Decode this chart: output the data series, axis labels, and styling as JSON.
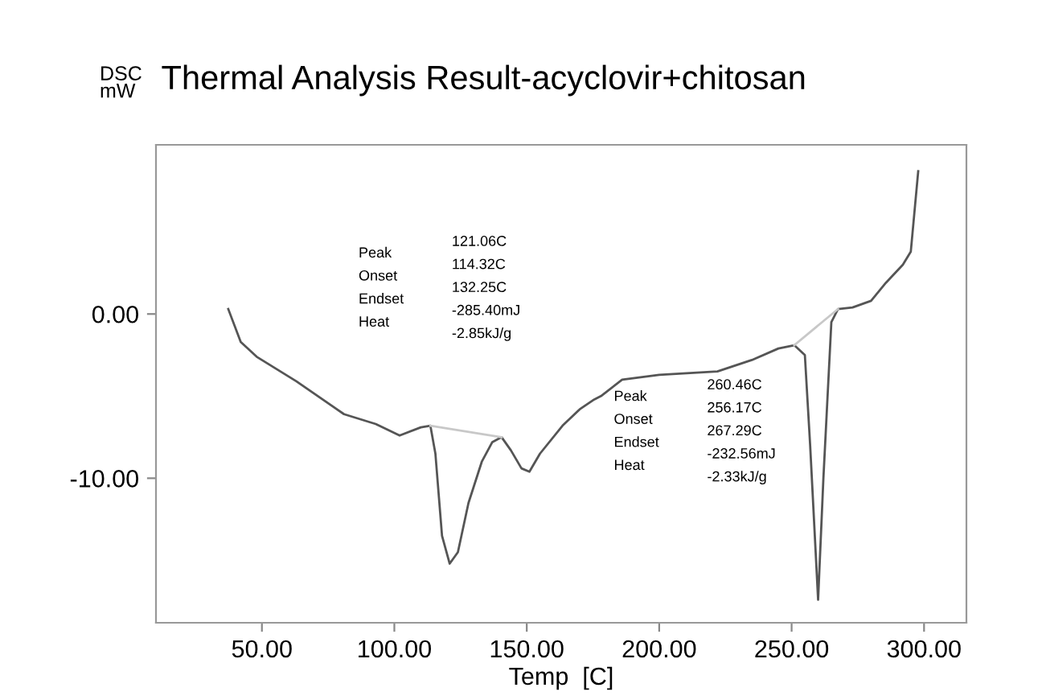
{
  "chart_data": {
    "type": "line",
    "title": "Thermal Analysis Result-acyclovir+chitosan",
    "xlabel": "Temp  [C]",
    "ylabel": "DSC\nmW",
    "xlim": [
      10,
      316
    ],
    "ylim": [
      -18.8,
      10.3
    ],
    "xticks": [
      {
        "value": 50,
        "label": "50.00"
      },
      {
        "value": 100,
        "label": "100.00"
      },
      {
        "value": 150,
        "label": "150.00"
      },
      {
        "value": 200,
        "label": "200.00"
      },
      {
        "value": 250,
        "label": "250.00"
      },
      {
        "value": 300,
        "label": "300.00"
      }
    ],
    "yticks": [
      {
        "value": 0,
        "label": "0.00"
      },
      {
        "value": -10,
        "label": "-10.00"
      }
    ],
    "grid": false,
    "legend": false,
    "series": [
      {
        "color": "#555555",
        "x": [
          37.3,
          42,
          48,
          63,
          81,
          93,
          102,
          110,
          113.6,
          115.5,
          118,
          120.9,
          124,
          128,
          133,
          137,
          140.5,
          144,
          148,
          151,
          155,
          163.5,
          170,
          175.5,
          178,
          186,
          200,
          222,
          235,
          245,
          251,
          255,
          257,
          260,
          262,
          265,
          267.5,
          273,
          280,
          285.6,
          292,
          295,
          297.8
        ],
        "values": [
          0.3,
          -1.7,
          -2.6,
          -4.1,
          -6.1,
          -6.7,
          -7.4,
          -6.9,
          -6.8,
          -8.5,
          -13.5,
          -15.2,
          -14.5,
          -11.5,
          -9.0,
          -7.8,
          -7.5,
          -8.3,
          -9.4,
          -9.6,
          -8.5,
          -6.8,
          -5.8,
          -5.2,
          -5.0,
          -4.0,
          -3.7,
          -3.5,
          -2.8,
          -2.1,
          -1.9,
          -2.5,
          -8.0,
          -17.4,
          -10.0,
          -0.5,
          0.3,
          0.4,
          0.8,
          1.9,
          3.0,
          3.8,
          8.7
        ]
      },
      {
        "color": "#c8c8c8",
        "x": [
          113.6,
          140.5
        ],
        "values": [
          -6.8,
          -7.5
        ]
      },
      {
        "color": "#c8c8c8",
        "x": [
          251,
          267.5
        ],
        "values": [
          -1.9,
          0.3
        ]
      }
    ],
    "annotations": [
      "Peak\nOnset\nEndset\nHeat",
      "121.06C\n114.32C\n132.25C\n-285.40mJ\n-2.85kJ/g",
      "Peak\nOnset\nEndset\nHeat",
      "260.46C\n256.17C\n267.29C\n-232.56mJ\n-2.33kJ/g"
    ]
  }
}
